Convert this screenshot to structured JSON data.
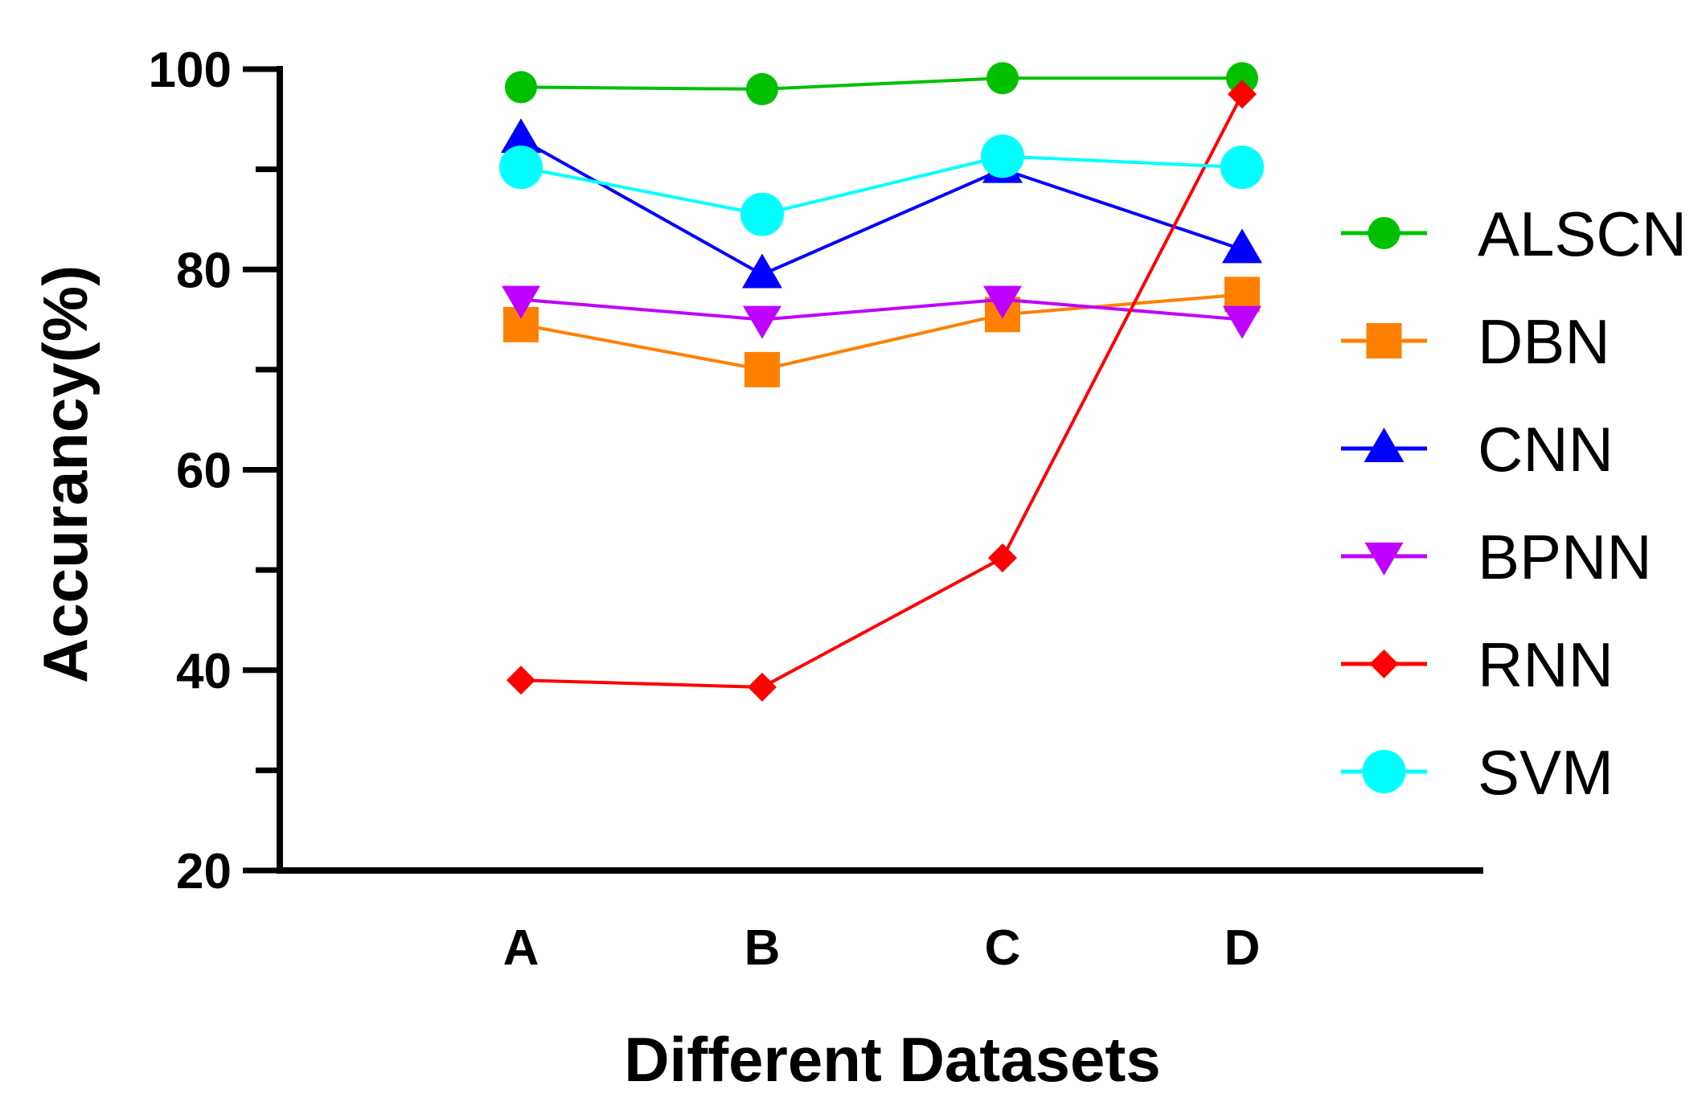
{
  "chart_data": {
    "type": "line",
    "title": "",
    "xlabel": "Different Datasets",
    "ylabel": "Accurancy(%)",
    "categories": [
      "A",
      "B",
      "C",
      "D"
    ],
    "ylim": [
      20,
      100
    ],
    "yticks": [
      20,
      40,
      60,
      80,
      100
    ],
    "grid": false,
    "legend_position": "right",
    "series": [
      {
        "name": "ALSCN",
        "color": "#00c000",
        "marker": "circle",
        "values": [
          98.2,
          98.0,
          99.1,
          99.1
        ]
      },
      {
        "name": "DBN",
        "color": "#ff8000",
        "marker": "square",
        "values": [
          74.5,
          70.0,
          75.5,
          77.5
        ]
      },
      {
        "name": "CNN",
        "color": "#0000ff",
        "marker": "triangle-up",
        "values": [
          93.0,
          79.5,
          90.0,
          82.0
        ]
      },
      {
        "name": "BPNN",
        "color": "#c000ff",
        "marker": "triangle-down",
        "values": [
          77.0,
          75.0,
          77.0,
          75.0
        ]
      },
      {
        "name": "RNN",
        "color": "#ff0000",
        "marker": "diamond",
        "values": [
          39.0,
          38.3,
          51.2,
          97.5
        ]
      },
      {
        "name": "SVM",
        "color": "#00ffff",
        "marker": "circle-large",
        "values": [
          90.2,
          85.5,
          91.3,
          90.2
        ]
      }
    ]
  }
}
